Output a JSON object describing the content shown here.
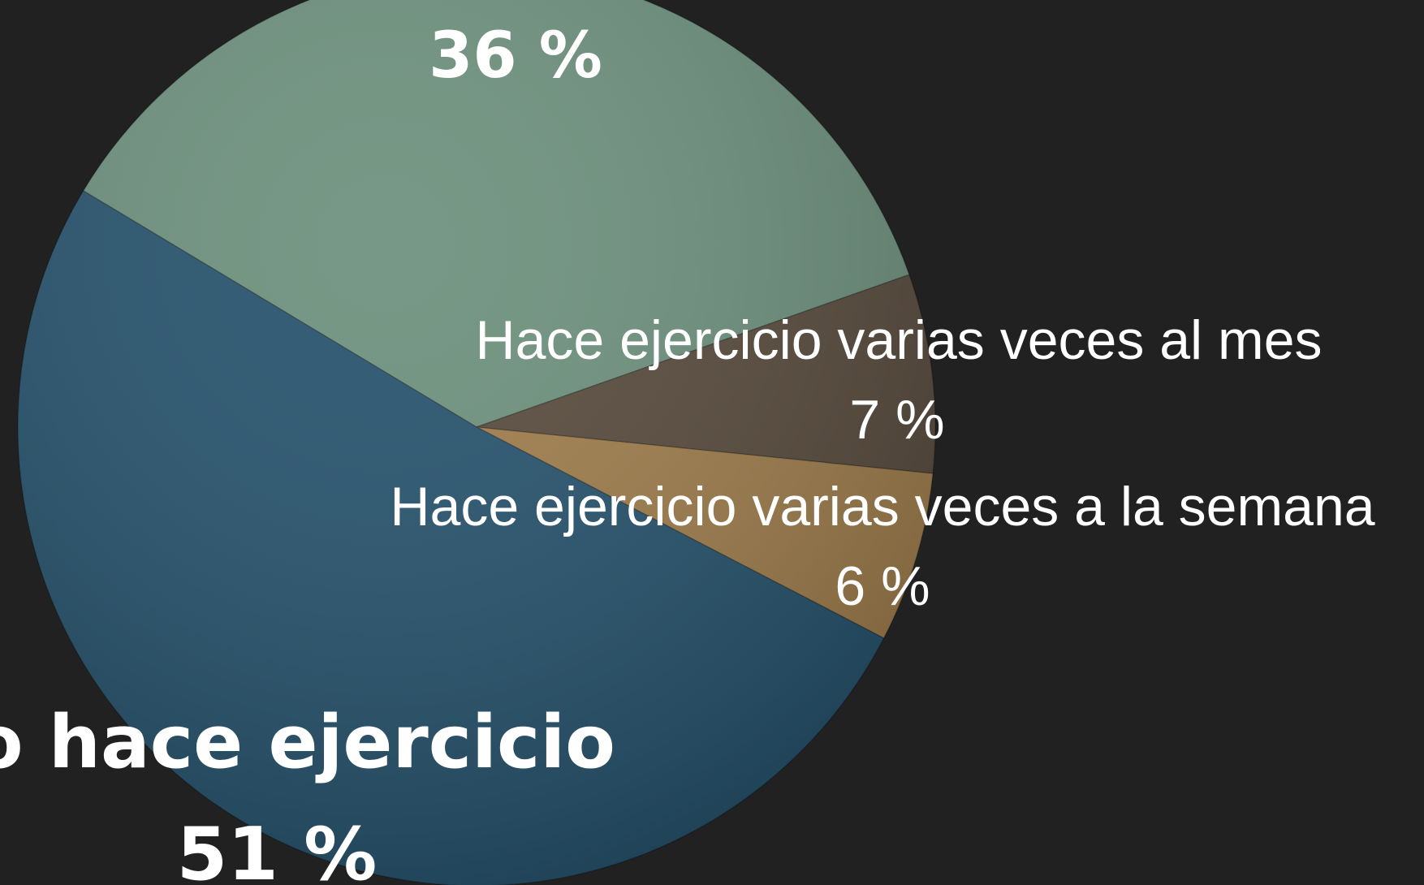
{
  "chart_data": {
    "type": "pie",
    "categories": [
      null,
      "Hace ejercicio varias veces al mes",
      "Hace ejercicio varias veces a la semana",
      "No hace ejercicio"
    ],
    "values": [
      36,
      7,
      6,
      51
    ],
    "value_labels": [
      "36 %",
      "7 %",
      "6 %",
      "51 %"
    ],
    "colors": [
      "#6b8f7b",
      "#56483a",
      "#9f7c49",
      "#22506b"
    ]
  }
}
